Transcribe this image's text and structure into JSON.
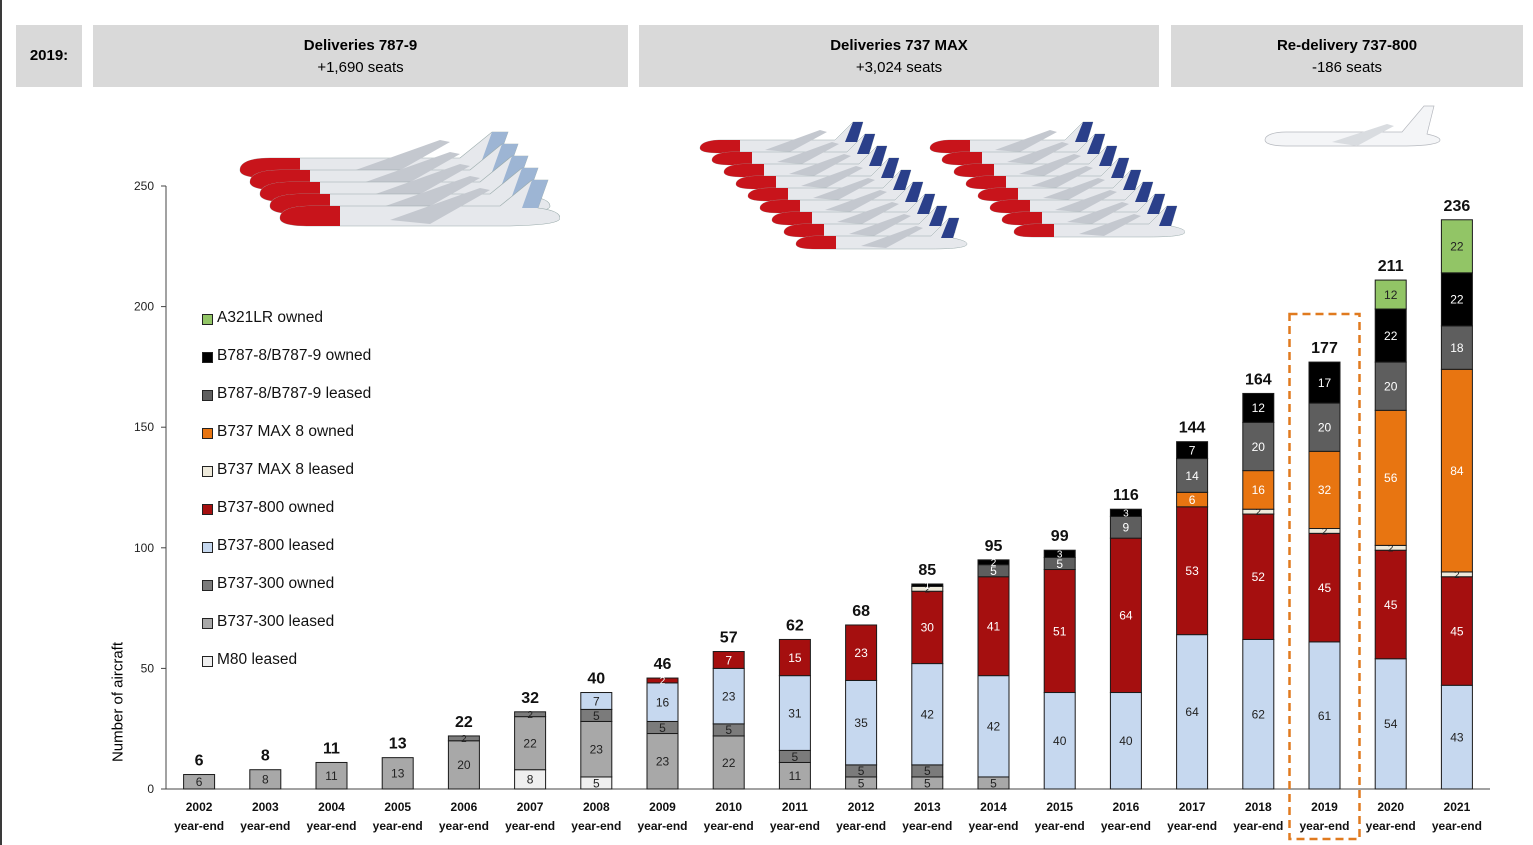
{
  "header": {
    "year_label": "2019:",
    "panels": [
      {
        "title": "Deliveries 787-9",
        "subtitle": "+1,690 seats"
      },
      {
        "title": "Deliveries 737 MAX",
        "subtitle": "+3,024 seats"
      },
      {
        "title": "Re-delivery 737-800",
        "subtitle": "-186 seats"
      }
    ]
  },
  "colors": {
    "A321LR owned": "#92c566",
    "B787-8/B787-9 owned": "#000000",
    "B787-8/B787-9 leased": "#5e5e5e",
    "B737 MAX 8 owned": "#e87511",
    "B737 MAX 8 leased": "#eeeadb",
    "B737-800 owned": "#a50f0f",
    "B737-800 leased": "#c6d8ef",
    "B737-300 owned": "#7b7b7b",
    "B737-300 leased": "#a8a8a8",
    "M80 leased": "#efefef",
    "highlight": "#e07a1f"
  },
  "chart_data": {
    "type": "bar",
    "stacked": true,
    "ylabel": "Number of aircraft",
    "xlabel": "",
    "ylim": [
      0,
      250
    ],
    "yticks": [
      0,
      50,
      100,
      150,
      200,
      250
    ],
    "categories": [
      "2002",
      "2003",
      "2004",
      "2005",
      "2006",
      "2007",
      "2008",
      "2009",
      "2010",
      "2011",
      "2012",
      "2013",
      "2014",
      "2015",
      "2016",
      "2017",
      "2018",
      "2019",
      "2020",
      "2021"
    ],
    "category_sublabel": "year-end",
    "highlight_category": "2019",
    "totals": [
      6,
      8,
      11,
      13,
      22,
      32,
      40,
      46,
      57,
      62,
      68,
      85,
      95,
      99,
      116,
      144,
      164,
      177,
      211,
      236
    ],
    "legend_order": [
      "A321LR owned",
      "B787-8/B787-9 owned",
      "B787-8/B787-9 leased",
      "B737 MAX 8 owned",
      "B737 MAX 8 leased",
      "B737-800 owned",
      "B737-800 leased",
      "B737-300 owned",
      "B737-300 leased",
      "M80 leased"
    ],
    "series": [
      {
        "name": "M80 leased",
        "values": [
          0,
          0,
          0,
          0,
          0,
          8,
          5,
          0,
          0,
          0,
          0,
          0,
          0,
          0,
          0,
          0,
          0,
          0,
          0,
          0
        ]
      },
      {
        "name": "B737-300 leased",
        "values": [
          6,
          8,
          11,
          13,
          20,
          22,
          23,
          23,
          22,
          11,
          5,
          5,
          5,
          0,
          0,
          0,
          0,
          0,
          0,
          0
        ]
      },
      {
        "name": "B737-300 owned",
        "values": [
          0,
          0,
          0,
          0,
          2,
          2,
          5,
          5,
          5,
          5,
          5,
          5,
          0,
          0,
          0,
          0,
          0,
          0,
          0,
          0
        ]
      },
      {
        "name": "B737-800 leased",
        "values": [
          0,
          0,
          0,
          0,
          0,
          0,
          7,
          16,
          23,
          31,
          35,
          42,
          42,
          40,
          40,
          64,
          62,
          61,
          54,
          43
        ]
      },
      {
        "name": "B737-800 owned",
        "values": [
          0,
          0,
          0,
          0,
          0,
          0,
          0,
          2,
          7,
          15,
          23,
          30,
          41,
          51,
          64,
          53,
          52,
          45,
          45,
          45
        ]
      },
      {
        "name": "B737 MAX 8 leased",
        "values": [
          0,
          0,
          0,
          0,
          0,
          0,
          0,
          0,
          0,
          0,
          0,
          2,
          0,
          0,
          0,
          0,
          2,
          2,
          2,
          2
        ]
      },
      {
        "name": "B737 MAX 8 owned",
        "values": [
          0,
          0,
          0,
          0,
          0,
          0,
          0,
          0,
          0,
          0,
          0,
          0,
          0,
          0,
          0,
          6,
          16,
          32,
          56,
          84
        ]
      },
      {
        "name": "B787-8/B787-9 leased",
        "values": [
          0,
          0,
          0,
          0,
          0,
          0,
          0,
          0,
          0,
          0,
          0,
          0,
          5,
          5,
          9,
          14,
          20,
          20,
          20,
          18
        ]
      },
      {
        "name": "B787-8/B787-9 owned",
        "values": [
          0,
          0,
          0,
          0,
          0,
          0,
          0,
          0,
          0,
          0,
          0,
          1,
          2,
          3,
          3,
          7,
          12,
          17,
          22,
          22
        ]
      },
      {
        "name": "A321LR owned",
        "values": [
          0,
          0,
          0,
          0,
          0,
          0,
          0,
          0,
          0,
          0,
          0,
          0,
          0,
          0,
          0,
          0,
          0,
          0,
          12,
          22
        ]
      }
    ]
  }
}
